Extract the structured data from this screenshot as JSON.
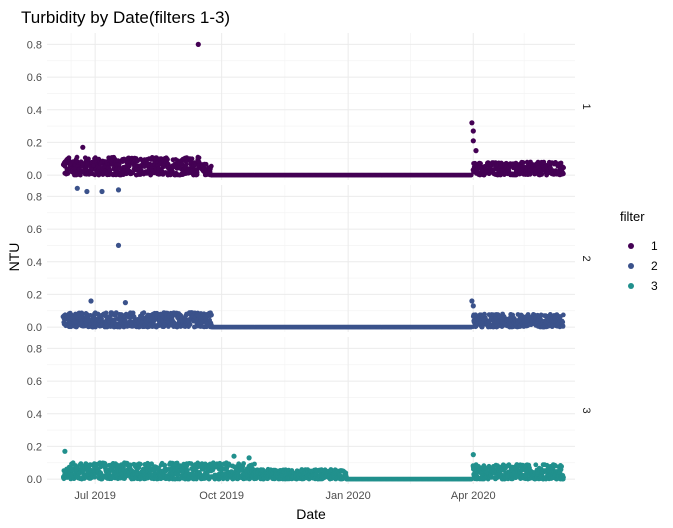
{
  "chart_data": {
    "type": "scatter",
    "title": "Turbidity by Date(filters 1-3)",
    "xlabel": "Date",
    "ylabel": "NTU",
    "x_ticks": [
      "Jul 2019",
      "Oct 2019",
      "Jan 2020",
      "Apr 2020"
    ],
    "x_tick_dates": [
      "2019-07-01",
      "2019-10-01",
      "2020-01-01",
      "2020-04-01"
    ],
    "xlim": [
      "2019-05-27",
      "2020-06-14"
    ],
    "ylim": [
      -0.03,
      0.87
    ],
    "y_ticks": [
      0.0,
      0.2,
      0.4,
      0.6,
      0.8
    ],
    "grid": true,
    "legend": {
      "title": "filter",
      "position": "right"
    },
    "series": [
      {
        "name": "1",
        "facet_label": "1",
        "color": "#440154",
        "segments": [
          {
            "start": "2019-06-08",
            "end": "2019-09-15",
            "base": 0.0,
            "noise_max": 0.11
          },
          {
            "start": "2019-09-17",
            "end": "2019-09-24",
            "base": 0.0,
            "noise_max": 0.07
          },
          {
            "start": "2019-09-24",
            "end": "2020-03-31",
            "base": 0.0,
            "noise_max": 0.0
          },
          {
            "start": "2020-04-01",
            "end": "2020-06-06",
            "base": 0.0,
            "noise_max": 0.08
          }
        ],
        "notable_points": [
          {
            "date": "2019-09-14",
            "value": 0.8
          },
          {
            "date": "2019-06-22",
            "value": 0.17
          },
          {
            "date": "2020-03-31",
            "value": 0.32
          },
          {
            "date": "2020-04-01",
            "value": 0.27
          },
          {
            "date": "2020-04-01",
            "value": 0.21
          },
          {
            "date": "2020-04-03",
            "value": 0.15
          }
        ]
      },
      {
        "name": "2",
        "facet_label": "2",
        "color": "#3b528b",
        "segments": [
          {
            "start": "2019-06-08",
            "end": "2019-09-24",
            "base": 0.0,
            "noise_max": 0.09
          },
          {
            "start": "2019-09-24",
            "end": "2020-03-31",
            "base": 0.0,
            "noise_max": 0.0
          },
          {
            "start": "2020-04-01",
            "end": "2020-06-06",
            "base": 0.0,
            "noise_max": 0.08
          }
        ],
        "notable_points": [
          {
            "date": "2019-06-18",
            "value": 0.85
          },
          {
            "date": "2019-06-25",
            "value": 0.83
          },
          {
            "date": "2019-07-06",
            "value": 0.83
          },
          {
            "date": "2019-07-18",
            "value": 0.84
          },
          {
            "date": "2019-07-18",
            "value": 0.5
          },
          {
            "date": "2019-07-23",
            "value": 0.15
          },
          {
            "date": "2019-06-28",
            "value": 0.16
          },
          {
            "date": "2020-03-31",
            "value": 0.16
          },
          {
            "date": "2020-04-01",
            "value": 0.13
          }
        ]
      },
      {
        "name": "3",
        "facet_label": "3",
        "color": "#21908d",
        "segments": [
          {
            "start": "2019-06-08",
            "end": "2019-10-25",
            "base": 0.0,
            "noise_max": 0.1
          },
          {
            "start": "2019-10-25",
            "end": "2019-12-31",
            "base": 0.0,
            "noise_max": 0.06
          },
          {
            "start": "2019-12-31",
            "end": "2020-03-31",
            "base": 0.0,
            "noise_max": 0.0
          },
          {
            "start": "2020-04-01",
            "end": "2020-06-06",
            "base": 0.0,
            "noise_max": 0.09
          }
        ],
        "notable_points": [
          {
            "date": "2019-06-09",
            "value": 0.17
          },
          {
            "date": "2019-10-10",
            "value": 0.14
          },
          {
            "date": "2019-10-21",
            "value": 0.13
          },
          {
            "date": "2020-04-01",
            "value": 0.15
          }
        ]
      }
    ]
  }
}
